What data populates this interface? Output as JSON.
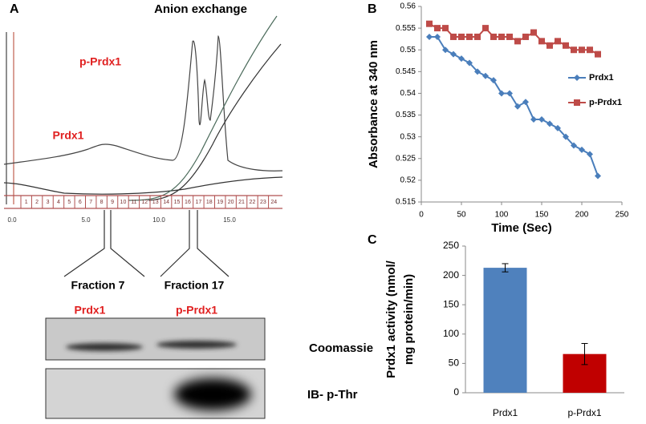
{
  "panel_a": {
    "label": "A",
    "title": "Anion exchange",
    "peak_labels": [
      "p-Prdx1",
      "Prdx1"
    ],
    "axis_labels": [
      "0.0",
      "5.0",
      "10.0",
      "15.0"
    ],
    "fractions": [
      "1",
      "2",
      "3",
      "4",
      "5",
      "6",
      "7",
      "8",
      "9",
      "10",
      "11",
      "12",
      "13",
      "14",
      "15",
      "16",
      "17",
      "18",
      "19",
      "20",
      "21",
      "22",
      "23",
      "24"
    ],
    "selected": [
      "Fraction 7",
      "Fraction 17"
    ],
    "lanes": [
      "Prdx1",
      "p-Prdx1"
    ],
    "blots": [
      "Coomassie",
      "IB- p-Thr"
    ]
  },
  "chart_data": [
    {
      "type": "line",
      "label": "B",
      "xlabel": "Time (Sec)",
      "ylabel": "Absorbance at 340 nm",
      "x": [
        10,
        20,
        30,
        40,
        50,
        60,
        70,
        80,
        90,
        100,
        110,
        120,
        130,
        140,
        150,
        160,
        170,
        180,
        190,
        200,
        210,
        220
      ],
      "series": [
        {
          "name": "Prdx1",
          "color": "#4a7ebb",
          "marker": "diamond",
          "values": [
            0.553,
            0.553,
            0.55,
            0.549,
            0.548,
            0.547,
            0.545,
            0.544,
            0.543,
            0.54,
            0.54,
            0.537,
            0.538,
            0.534,
            0.534,
            0.533,
            0.532,
            0.53,
            0.528,
            0.527,
            0.526,
            0.521
          ]
        },
        {
          "name": "p-Prdx1",
          "color": "#be4b48",
          "marker": "square",
          "values": [
            0.556,
            0.555,
            0.555,
            0.553,
            0.553,
            0.553,
            0.553,
            0.555,
            0.553,
            0.553,
            0.553,
            0.552,
            0.553,
            0.554,
            0.552,
            0.551,
            0.552,
            0.551,
            0.55,
            0.55,
            0.55,
            0.549
          ]
        }
      ],
      "xlim": [
        0,
        250
      ],
      "xticks": [
        0,
        50,
        100,
        150,
        200,
        250
      ],
      "ylim": [
        0.515,
        0.56
      ],
      "yticks": [
        0.515,
        0.52,
        0.525,
        0.53,
        0.535,
        0.54,
        0.545,
        0.55,
        0.555,
        0.56
      ],
      "legend": "right"
    },
    {
      "type": "bar",
      "label": "C",
      "ylabel": [
        "Prdx1 activity (nmol/",
        "mg protein/min)"
      ],
      "categories": [
        "Prdx1",
        "p-Prdx1"
      ],
      "values": [
        213,
        66
      ],
      "errors": [
        7,
        18
      ],
      "colors": [
        "#4f81bd",
        "#c00000"
      ],
      "ylim": [
        0,
        250
      ],
      "yticks": [
        0,
        50,
        100,
        150,
        200,
        250
      ]
    }
  ]
}
